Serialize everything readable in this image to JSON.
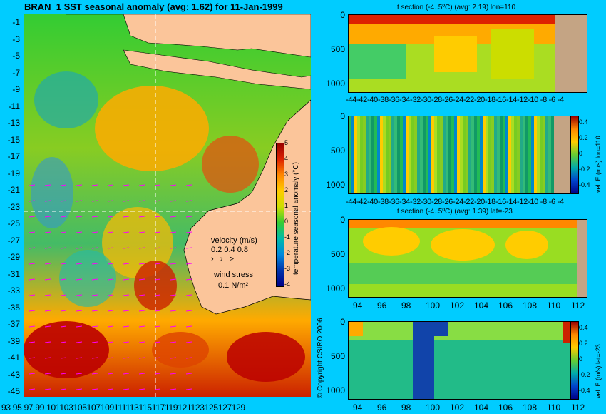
{
  "main_title": "BRAN_1 SST seasonal anomaly (avg: 1.62) for 11-Jan-1999",
  "map": {
    "lat_ticks": [
      "-1",
      "-3",
      "-5",
      "-7",
      "-9",
      "-11",
      "-13",
      "-15",
      "-17",
      "-19",
      "-21",
      "-23",
      "-25",
      "-27",
      "-29",
      "-31",
      "-33",
      "-35",
      "-37",
      "-39",
      "-41",
      "-43",
      "-45"
    ],
    "lon_ticks": [
      "93",
      "95",
      "97",
      "99",
      "101",
      "103",
      "105",
      "107",
      "109",
      "111",
      "113",
      "115",
      "117",
      "119",
      "121",
      "123",
      "125",
      "127",
      "129"
    ],
    "lon_ticks_display": "93 95 97 99 101103105107109111113115117119121123125127129",
    "colorbar_ticks": [
      "5",
      "4",
      "3",
      "2",
      "1",
      "0",
      "-1",
      "-2",
      "-3",
      "-4"
    ],
    "colorbar_label": "temperature seasonal anomaly (°C)",
    "velocity_label": "velocity (m/s)",
    "velocity_scale": "0.2 0.4 0.8",
    "wind_label": "wind stress",
    "wind_value": "0.1 N/m²",
    "copyright": "© Copyright CSIRO 2006",
    "crosshair": {
      "lon": 110,
      "lat": -23
    }
  },
  "panels": [
    {
      "title": "t section (-4..5ºC) (avg: 2.19) lon=110",
      "x_ticks": [
        "-44",
        "-42",
        "-40",
        "-38",
        "-36",
        "-34",
        "-32",
        "-30",
        "-28",
        "-26",
        "-24",
        "-22",
        "-20",
        "-18",
        "-16",
        "-14",
        "-12",
        "-10",
        "-8",
        "-6",
        "-4"
      ],
      "x_display": "-44-42-40-38-36-34-32-30-28-26-24-22-20-18-16-14-12-10 -8  -6  -4",
      "y_ticks": [
        "0",
        "500",
        "1000"
      ]
    },
    {
      "title": "",
      "x_ticks": [
        "-44",
        "-42",
        "-40",
        "-38",
        "-36",
        "-34",
        "-32",
        "-30",
        "-28",
        "-26",
        "-24",
        "-22",
        "-20",
        "-18",
        "-16",
        "-14",
        "-12",
        "-10",
        "-8",
        "-6",
        "-4"
      ],
      "x_display": "-44-42-40-38-36-34-32-30-28-26-24-22-20-18-16-14-12-10 -8  -6  -4",
      "y_ticks": [
        "0",
        "500",
        "1000"
      ],
      "colorbar_ticks": [
        "0.4",
        "0.2",
        "0",
        "-0.2",
        "-0.4"
      ],
      "colorbar_label": "vel. E (m/s) lon=110"
    },
    {
      "title": "t section (-4..5ºC) (avg: 1.39) lat=-23",
      "x_ticks": [
        "94",
        "96",
        "98",
        "100",
        "102",
        "104",
        "106",
        "108",
        "110",
        "112"
      ],
      "y_ticks": [
        "0",
        "500",
        "1000"
      ]
    },
    {
      "title": "",
      "x_ticks": [
        "94",
        "96",
        "98",
        "100",
        "102",
        "104",
        "106",
        "108",
        "110",
        "112"
      ],
      "y_ticks": [
        "0",
        "500",
        "1000"
      ],
      "colorbar_ticks": [
        "0.4",
        "0.2",
        "0",
        "-0.2",
        "-0.4"
      ],
      "colorbar_label": "vel. E (m/s) lat=-23"
    }
  ],
  "colors": {
    "background": "#00ccff",
    "land": "#fbc59a",
    "section_land": "#c4a484",
    "vector": "#ff00ff"
  }
}
